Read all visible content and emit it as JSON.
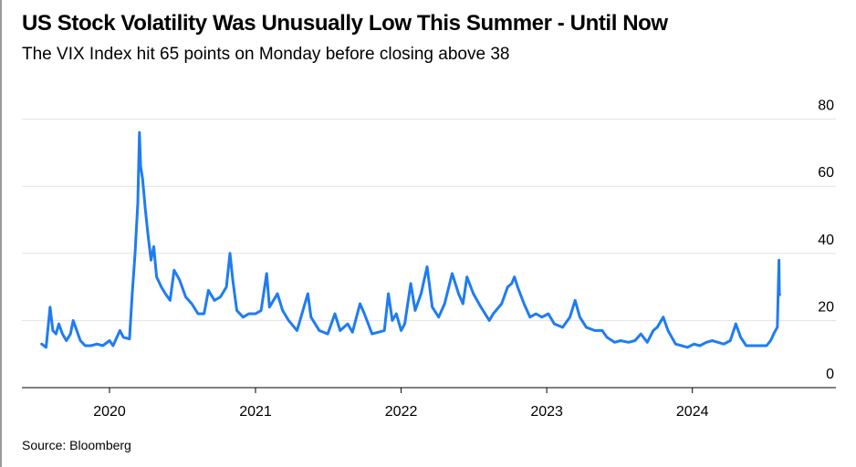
{
  "header": {
    "title": "US Stock Volatility Was Unusually Low This Summer - Until Now",
    "subtitle": "The VIX Index hit 65 points on Monday before closing above 38"
  },
  "footer": {
    "source": "Source: Bloomberg"
  },
  "colors": {
    "line": "#1f7cf2",
    "grid": "#e3e3e3",
    "axis": "#000000"
  },
  "chart_data": {
    "type": "line",
    "title": "US Stock Volatility Was Unusually Low This Summer - Until Now",
    "subtitle": "The VIX Index hit 65 points on Monday before closing above 38",
    "xlabel": "",
    "ylabel": "",
    "xlim": [
      "2019-07-15",
      "2024-10-01"
    ],
    "ylim": [
      0,
      80
    ],
    "y_ticks": [
      0,
      20,
      40,
      60,
      80
    ],
    "x_ticks": [
      "2020",
      "2021",
      "2022",
      "2023",
      "2024"
    ],
    "y_axis_side": "right",
    "grid": "horizontal",
    "series": [
      {
        "points": [
          [
            "2019-07-15",
            13
          ],
          [
            "2019-07-26",
            12
          ],
          [
            "2019-08-05",
            24
          ],
          [
            "2019-08-12",
            17
          ],
          [
            "2019-08-20",
            16
          ],
          [
            "2019-08-27",
            19
          ],
          [
            "2019-09-05",
            16
          ],
          [
            "2019-09-15",
            14
          ],
          [
            "2019-09-25",
            16
          ],
          [
            "2019-10-02",
            20
          ],
          [
            "2019-10-08",
            18
          ],
          [
            "2019-10-20",
            14
          ],
          [
            "2019-11-01",
            12.5
          ],
          [
            "2019-11-15",
            12.5
          ],
          [
            "2019-12-01",
            13
          ],
          [
            "2019-12-15",
            12.5
          ],
          [
            "2020-01-01",
            14
          ],
          [
            "2020-01-10",
            12.5
          ],
          [
            "2020-01-27",
            17
          ],
          [
            "2020-02-05",
            15
          ],
          [
            "2020-02-20",
            14.5
          ],
          [
            "2020-02-27",
            28
          ],
          [
            "2020-03-05",
            40
          ],
          [
            "2020-03-12",
            55
          ],
          [
            "2020-03-16",
            76
          ],
          [
            "2020-03-19",
            66
          ],
          [
            "2020-03-24",
            62
          ],
          [
            "2020-03-31",
            53
          ],
          [
            "2020-04-07",
            45
          ],
          [
            "2020-04-14",
            38
          ],
          [
            "2020-04-21",
            42
          ],
          [
            "2020-04-28",
            33
          ],
          [
            "2020-05-10",
            30
          ],
          [
            "2020-05-20",
            28
          ],
          [
            "2020-06-01",
            26
          ],
          [
            "2020-06-11",
            35
          ],
          [
            "2020-06-25",
            32
          ],
          [
            "2020-07-10",
            27
          ],
          [
            "2020-07-25",
            25
          ],
          [
            "2020-08-10",
            22
          ],
          [
            "2020-08-25",
            22
          ],
          [
            "2020-09-05",
            29
          ],
          [
            "2020-09-20",
            26
          ],
          [
            "2020-10-05",
            27
          ],
          [
            "2020-10-20",
            30
          ],
          [
            "2020-10-29",
            40
          ],
          [
            "2020-11-05",
            32
          ],
          [
            "2020-11-15",
            23
          ],
          [
            "2020-12-01",
            21
          ],
          [
            "2020-12-15",
            22
          ],
          [
            "2021-01-01",
            22
          ],
          [
            "2021-01-15",
            23
          ],
          [
            "2021-01-29",
            34
          ],
          [
            "2021-02-05",
            24
          ],
          [
            "2021-02-25",
            28
          ],
          [
            "2021-03-10",
            23
          ],
          [
            "2021-03-25",
            20
          ],
          [
            "2021-04-15",
            17
          ],
          [
            "2021-05-12",
            28
          ],
          [
            "2021-05-20",
            21
          ],
          [
            "2021-06-10",
            17
          ],
          [
            "2021-07-01",
            16
          ],
          [
            "2021-07-19",
            22
          ],
          [
            "2021-08-01",
            17
          ],
          [
            "2021-08-20",
            19
          ],
          [
            "2021-09-01",
            16.5
          ],
          [
            "2021-09-20",
            25
          ],
          [
            "2021-10-01",
            22
          ],
          [
            "2021-10-20",
            16
          ],
          [
            "2021-11-20",
            17
          ],
          [
            "2021-11-30",
            28
          ],
          [
            "2021-12-10",
            20
          ],
          [
            "2021-12-20",
            22
          ],
          [
            "2022-01-01",
            17
          ],
          [
            "2022-01-10",
            19
          ],
          [
            "2022-01-25",
            31
          ],
          [
            "2022-02-05",
            23
          ],
          [
            "2022-02-20",
            28
          ],
          [
            "2022-03-07",
            36
          ],
          [
            "2022-03-20",
            24
          ],
          [
            "2022-04-05",
            21
          ],
          [
            "2022-04-20",
            25
          ],
          [
            "2022-05-09",
            34
          ],
          [
            "2022-05-25",
            28
          ],
          [
            "2022-06-05",
            25
          ],
          [
            "2022-06-15",
            33
          ],
          [
            "2022-07-01",
            28
          ],
          [
            "2022-07-20",
            24
          ],
          [
            "2022-08-10",
            20
          ],
          [
            "2022-08-20",
            22
          ],
          [
            "2022-09-10",
            25
          ],
          [
            "2022-09-25",
            30
          ],
          [
            "2022-10-05",
            31
          ],
          [
            "2022-10-12",
            33
          ],
          [
            "2022-10-20",
            30
          ],
          [
            "2022-11-05",
            25
          ],
          [
            "2022-11-20",
            21
          ],
          [
            "2022-12-05",
            22
          ],
          [
            "2022-12-20",
            21
          ],
          [
            "2023-01-05",
            22
          ],
          [
            "2023-01-20",
            19
          ],
          [
            "2023-02-10",
            18
          ],
          [
            "2023-02-28",
            21
          ],
          [
            "2023-03-13",
            26
          ],
          [
            "2023-03-25",
            21
          ],
          [
            "2023-04-10",
            18
          ],
          [
            "2023-05-01",
            17
          ],
          [
            "2023-05-20",
            17
          ],
          [
            "2023-06-01",
            15
          ],
          [
            "2023-06-20",
            13.5
          ],
          [
            "2023-07-05",
            14
          ],
          [
            "2023-07-25",
            13.5
          ],
          [
            "2023-08-10",
            14
          ],
          [
            "2023-08-25",
            16
          ],
          [
            "2023-09-10",
            13.5
          ],
          [
            "2023-09-25",
            17
          ],
          [
            "2023-10-05",
            18
          ],
          [
            "2023-10-20",
            21
          ],
          [
            "2023-11-01",
            17
          ],
          [
            "2023-11-20",
            13
          ],
          [
            "2023-12-05",
            12.5
          ],
          [
            "2023-12-20",
            12
          ],
          [
            "2024-01-05",
            13
          ],
          [
            "2024-01-20",
            12.5
          ],
          [
            "2024-02-05",
            13.5
          ],
          [
            "2024-02-20",
            14
          ],
          [
            "2024-03-05",
            13.5
          ],
          [
            "2024-03-20",
            13
          ],
          [
            "2024-04-05",
            14
          ],
          [
            "2024-04-19",
            19
          ],
          [
            "2024-05-01",
            15
          ],
          [
            "2024-05-15",
            12.5
          ],
          [
            "2024-06-01",
            12.5
          ],
          [
            "2024-06-20",
            12.5
          ],
          [
            "2024-07-05",
            12.5
          ],
          [
            "2024-07-15",
            14
          ],
          [
            "2024-07-25",
            16.5
          ],
          [
            "2024-08-01",
            18
          ],
          [
            "2024-08-05",
            38
          ],
          [
            "2024-08-06",
            28
          ],
          [
            "2024-08-07",
            27.7
          ]
        ]
      }
    ]
  }
}
